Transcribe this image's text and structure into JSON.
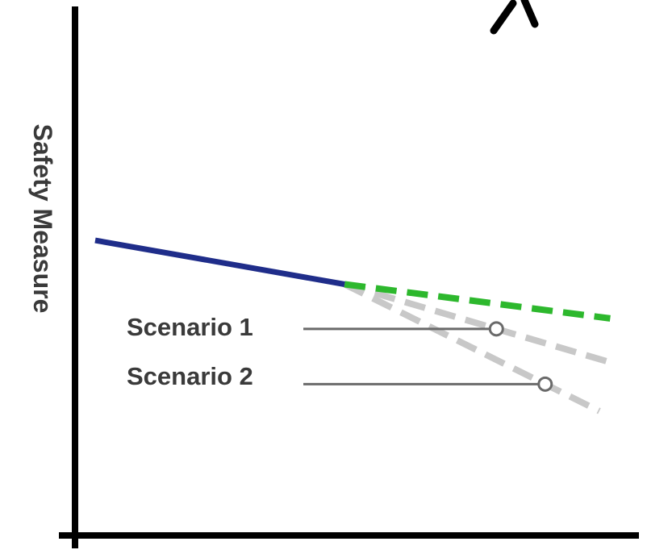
{
  "chart_data": {
    "type": "line",
    "title": "",
    "xlabel": "",
    "ylabel": "Safety Measure",
    "xlim": [
      0,
      10
    ],
    "ylim": [
      0,
      10
    ],
    "grid": false,
    "legend": "none",
    "series": [
      {
        "values_x": [
          0,
          4.6
        ],
        "values_y": [
          5.9,
          5.0
        ],
        "color": "#1f2d8a",
        "style": "solid"
      },
      {
        "values_x": [
          4.6,
          9.5
        ],
        "values_y": [
          5.0,
          4.3
        ],
        "color": "#2db82d",
        "style": "dashed"
      },
      {
        "values_x": [
          4.6,
          9.5
        ],
        "values_y": [
          5.0,
          3.4
        ],
        "color": "#c8c8c8",
        "style": "dashed"
      },
      {
        "values_x": [
          4.6,
          9.3
        ],
        "values_y": [
          5.0,
          2.4
        ],
        "color": "#c8c8c8",
        "style": "dashed"
      }
    ],
    "annotations": [
      {
        "text": "Scenario 1",
        "target_series": 2,
        "target_x": 7.4
      },
      {
        "text": "Scenario 2",
        "target_series": 3,
        "target_x": 8.3
      }
    ]
  }
}
